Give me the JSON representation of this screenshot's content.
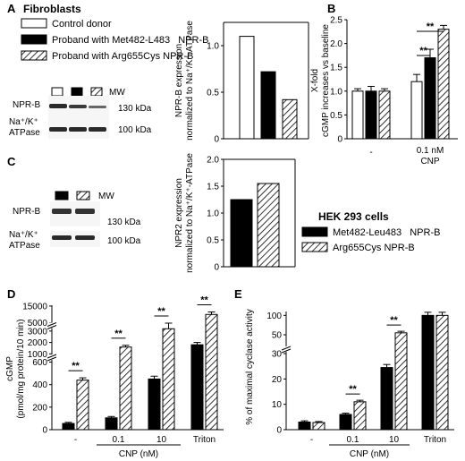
{
  "panels": {
    "A": {
      "letter": "A",
      "heading": "Fibroblasts",
      "legend": [
        {
          "label": "Control donor",
          "fill": "white"
        },
        {
          "label": "Proband with Met482-L483   NPR-B",
          "fill": "black"
        },
        {
          "label": "Proband with Arg655Cys NPR-B",
          "fill": "hatch"
        }
      ],
      "blot": {
        "mw_label": "MW",
        "rows": [
          {
            "label": "NPR-B",
            "size": "130 kDa"
          },
          {
            "label_line1": "Na⁺/K⁺",
            "label_line2": "ATPase",
            "size": "100 kDa"
          }
        ]
      }
    },
    "B": {
      "letter": "B"
    },
    "C": {
      "letter": "C",
      "blot": {
        "mw_label": "MW",
        "rows": [
          {
            "label": "NPR-B",
            "size": "130 kDa"
          },
          {
            "label_line1": "Na⁺/K⁺",
            "label_line2": "ATPase",
            "size": "100 kDa"
          }
        ]
      },
      "heading": "HEK 293 cells",
      "legend": [
        {
          "label": "Met482-Leu483   NPR-B",
          "fill": "black"
        },
        {
          "label": "Arg655Cys NPR-B",
          "fill": "hatch"
        }
      ]
    },
    "D": {
      "letter": "D"
    },
    "E": {
      "letter": "E"
    }
  },
  "chart_data": [
    {
      "id": "A",
      "type": "bar",
      "ylabel": "NPR-B expression normalized to Na⁺/K⁺-ATPase",
      "ylabel_lines": [
        "NPR-B expression",
        "normalized to Na⁺/K⁺-ATPase"
      ],
      "ylim": [
        0,
        1.25
      ],
      "yticks": [
        "0",
        "0.5",
        "1.0"
      ],
      "categories": [
        "Control donor",
        "Met482-L483",
        "Arg655Cys"
      ],
      "values": [
        1.1,
        0.72,
        0.42
      ],
      "fills": [
        "white",
        "black",
        "hatch"
      ]
    },
    {
      "id": "B",
      "type": "bar",
      "ylabel": "X-fold cGMP increases vs baseline",
      "ylabel_lines": [
        "X-fold",
        "cGMP increases vs baseline"
      ],
      "ylim": [
        0,
        2.5
      ],
      "yticks": [
        "0",
        "0.5",
        "1.0",
        "1.5",
        "2.0",
        "2.5"
      ],
      "groups": [
        {
          "label": "-",
          "values": [
            1.0,
            1.0,
            1.0
          ],
          "errors": [
            0.05,
            0.1,
            0.05
          ]
        },
        {
          "label_line1": "0.1 nM",
          "label_line2": "CNP",
          "values": [
            1.2,
            1.7,
            2.3
          ],
          "errors": [
            0.15,
            0.18,
            0.08
          ]
        }
      ],
      "fills": [
        "white",
        "black",
        "hatch"
      ],
      "significance": [
        "**",
        "**"
      ]
    },
    {
      "id": "C",
      "type": "bar",
      "ylabel": "NPR2 expression normalized to Na⁺/K⁺-ATPase",
      "ylabel_lines": [
        "NPR2 expression",
        "normalized to Na⁺/K⁺-ATPase"
      ],
      "ylim": [
        0,
        2.0
      ],
      "yticks": [
        "0",
        "0.5",
        "1.0",
        "1.5",
        "2.0"
      ],
      "categories": [
        "Met482-Leu483",
        "Arg655Cys"
      ],
      "values": [
        1.25,
        1.55
      ],
      "fills": [
        "black",
        "hatch"
      ]
    },
    {
      "id": "D",
      "type": "bar",
      "ylabel": "cGMP (pmol/mg protein/10 min)",
      "ylabel_lines": [
        "cGMP",
        "(pmol/mg protein/10 min)"
      ],
      "yticks": [
        "0",
        "200",
        "400",
        "600",
        "1000",
        "2000",
        "3000",
        "5000",
        "15000"
      ],
      "groups": [
        {
          "label": "-",
          "values": [
            55,
            440
          ],
          "errors": [
            10,
            20
          ]
        },
        {
          "label": "0.1",
          "values": [
            105,
            1600
          ],
          "errors": [
            12,
            150
          ]
        },
        {
          "label": "10",
          "values": [
            450,
            3200
          ],
          "errors": [
            25,
            300
          ]
        },
        {
          "label": "Triton",
          "values": [
            1800,
            10000
          ],
          "errors": [
            200,
            1500
          ]
        }
      ],
      "fills": [
        "black",
        "hatch"
      ],
      "significance": [
        "**",
        "**",
        "**",
        "**"
      ],
      "xlabel": "CNP (nM)"
    },
    {
      "id": "E",
      "type": "bar",
      "ylabel": "% of maximal cyclase activity",
      "yticks": [
        "0",
        "10",
        "20",
        "30",
        "50",
        "100"
      ],
      "groups": [
        {
          "label": "-",
          "values": [
            3,
            2.8
          ],
          "errors": [
            0.5,
            0.4
          ]
        },
        {
          "label": "0.1",
          "values": [
            6,
            11
          ],
          "errors": [
            0.5,
            0.6
          ]
        },
        {
          "label": "10",
          "values": [
            24.5,
            55
          ],
          "errors": [
            1.2,
            4
          ]
        },
        {
          "label": "Triton",
          "values": [
            100,
            100
          ],
          "errors": [
            8,
            8
          ]
        }
      ],
      "fills": [
        "black",
        "hatch"
      ],
      "significance": [
        "**",
        "**"
      ],
      "xlabel": "CNP (nM)"
    }
  ]
}
